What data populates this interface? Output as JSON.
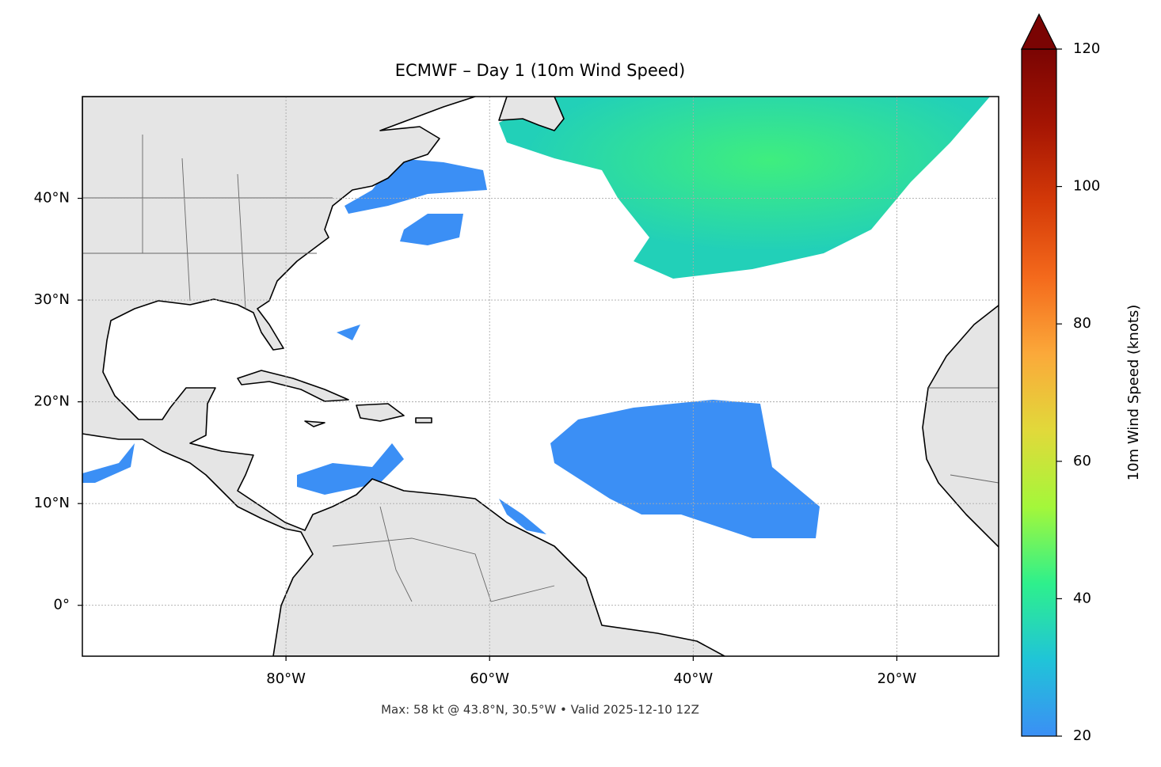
{
  "map": {
    "title": "ECMWF – Day 1 (10m Wind Speed)",
    "footer": "Max: 58 kt @ 43.8°N, 30.5°W • Valid 2025-12-10 12Z",
    "lonlim": [
      -100,
      -10
    ],
    "latlim": [
      -5,
      50
    ],
    "xticks": [
      {
        "value": -80,
        "label": "80°W"
      },
      {
        "value": -60,
        "label": "60°W"
      },
      {
        "value": -40,
        "label": "40°W"
      },
      {
        "value": -20,
        "label": "20°W"
      }
    ],
    "yticks": [
      {
        "value": 0,
        "label": "0°"
      },
      {
        "value": 10,
        "label": "10°N"
      },
      {
        "value": 20,
        "label": "20°N"
      },
      {
        "value": 30,
        "label": "30°N"
      },
      {
        "value": 40,
        "label": "40°N"
      }
    ],
    "grid": true,
    "colorbar": {
      "label": "10m Wind Speed (knots)",
      "lim": [
        20,
        120
      ],
      "ticks": [
        20,
        40,
        60,
        80,
        100,
        120
      ],
      "extend": "max",
      "colormap": [
        "#3b8ff5",
        "#20c4d8",
        "#2ef08c",
        "#a4f73a",
        "#e1d93a",
        "#fba93a",
        "#f46a1c",
        "#d43a08",
        "#a51503",
        "#7a0403"
      ]
    }
  }
}
